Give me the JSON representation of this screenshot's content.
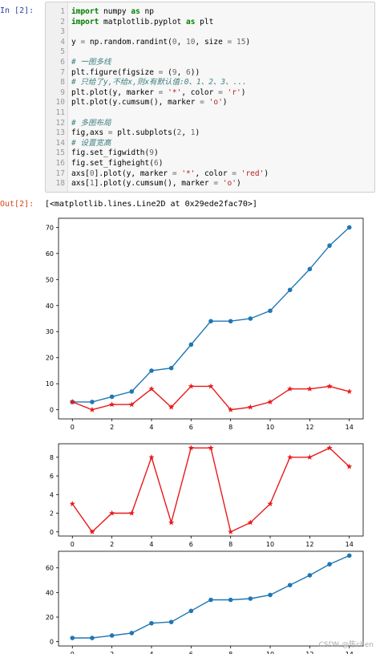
{
  "cell": {
    "in_prompt": "In  [2]:",
    "out_prompt": "Out[2]:",
    "output_text": "[<matplotlib.lines.Line2D at 0x29ede2fac70>]",
    "lines": [
      {
        "n": "1",
        "html": "<span class='kw'>import</span> numpy <span class='kw'>as</span> np"
      },
      {
        "n": "2",
        "html": "<span class='kw'>import</span> matplotlib.pyplot <span class='kw'>as</span> plt"
      },
      {
        "n": "3",
        "html": ""
      },
      {
        "n": "4",
        "html": "y <span class='nm'>=</span> np.random.randint(<span class='nm'>0</span>, <span class='nm'>10</span>, size <span class='nm'>=</span> <span class='nm'>15</span>)"
      },
      {
        "n": "5",
        "html": ""
      },
      {
        "n": "6",
        "html": "<span class='cm'># 一图多线</span>"
      },
      {
        "n": "7",
        "html": "plt.figure(figsize <span class='nm'>=</span> (<span class='nm'>9</span>, <span class='nm'>6</span>))"
      },
      {
        "n": "8",
        "html": "<span class='cm'># 只给了y,不给x,则x有默认值:0、1、2、3、...</span>"
      },
      {
        "n": "9",
        "html": "plt.plot(y, marker <span class='nm'>=</span> <span class='st'>'*'</span>, color <span class='nm'>=</span> <span class='st'>'r'</span>)"
      },
      {
        "n": "10",
        "html": "plt.plot(y.cumsum(), marker <span class='nm'>=</span> <span class='st'>'o'</span>)"
      },
      {
        "n": "11",
        "html": ""
      },
      {
        "n": "12",
        "html": "<span class='cm'># 多图布局</span>"
      },
      {
        "n": "13",
        "html": "fig,axs <span class='nm'>=</span> plt.subplots(<span class='nm'>2</span>, <span class='nm'>1</span>)"
      },
      {
        "n": "14",
        "html": "<span class='cm'># 设置宽高</span>"
      },
      {
        "n": "15",
        "html": "fig.set_figwidth(<span class='nm'>9</span>)"
      },
      {
        "n": "16",
        "html": "fig.set_figheight(<span class='nm'>6</span>)"
      },
      {
        "n": "17",
        "html": "axs[<span class='nm'>0</span>].plot(y, marker <span class='nm'>=</span> <span class='st'>'*'</span>, color <span class='nm'>=</span> <span class='st'>'red'</span>)"
      },
      {
        "n": "18",
        "html": "axs[<span class='nm'>1</span>].plot(y.cumsum(), marker <span class='nm'>=</span> <span class='st'>'o'</span>)"
      }
    ]
  },
  "watermark": "CSDN @陈chen",
  "colors": {
    "red_series": "#e8191b",
    "blue_series": "#1f77b4"
  },
  "chart_data": [
    {
      "type": "line",
      "x": [
        0,
        1,
        2,
        3,
        4,
        5,
        6,
        7,
        8,
        9,
        10,
        11,
        12,
        13,
        14
      ],
      "series": [
        {
          "values": [
            3,
            3,
            5,
            7,
            15,
            16,
            25,
            34,
            34,
            35,
            38,
            46,
            54,
            63,
            70
          ],
          "color": "#1f77b4",
          "marker": "o"
        },
        {
          "values": [
            3,
            0,
            2,
            2,
            8,
            1,
            9,
            9,
            0,
            1,
            3,
            8,
            8,
            9,
            7
          ],
          "color": "#e8191b",
          "marker": "*"
        }
      ],
      "xticks": [
        0,
        2,
        4,
        6,
        8,
        10,
        12,
        14
      ],
      "yticks": [
        0,
        10,
        20,
        30,
        40,
        50,
        60,
        70
      ],
      "xlim": [
        -0.7,
        14.7
      ],
      "ylim": [
        -3.5,
        73.5
      ]
    },
    {
      "type": "line",
      "x": [
        0,
        1,
        2,
        3,
        4,
        5,
        6,
        7,
        8,
        9,
        10,
        11,
        12,
        13,
        14
      ],
      "series": [
        {
          "values": [
            3,
            0,
            2,
            2,
            8,
            1,
            9,
            9,
            0,
            1,
            3,
            8,
            8,
            9,
            7
          ],
          "color": "#e8191b",
          "marker": "*"
        }
      ],
      "xticks": [
        0,
        2,
        4,
        6,
        8,
        10,
        12,
        14
      ],
      "yticks": [
        0,
        2,
        4,
        6,
        8
      ],
      "xlim": [
        -0.7,
        14.7
      ],
      "ylim": [
        -0.45,
        9.45
      ]
    },
    {
      "type": "line",
      "x": [
        0,
        1,
        2,
        3,
        4,
        5,
        6,
        7,
        8,
        9,
        10,
        11,
        12,
        13,
        14
      ],
      "series": [
        {
          "values": [
            3,
            3,
            5,
            7,
            15,
            16,
            25,
            34,
            34,
            35,
            38,
            46,
            54,
            63,
            70
          ],
          "color": "#1f77b4",
          "marker": "o"
        }
      ],
      "xticks": [
        0,
        2,
        4,
        6,
        8,
        10,
        12,
        14
      ],
      "yticks": [
        0,
        20,
        40,
        60
      ],
      "xlim": [
        -0.7,
        14.7
      ],
      "ylim": [
        -3.5,
        73.5
      ]
    }
  ]
}
